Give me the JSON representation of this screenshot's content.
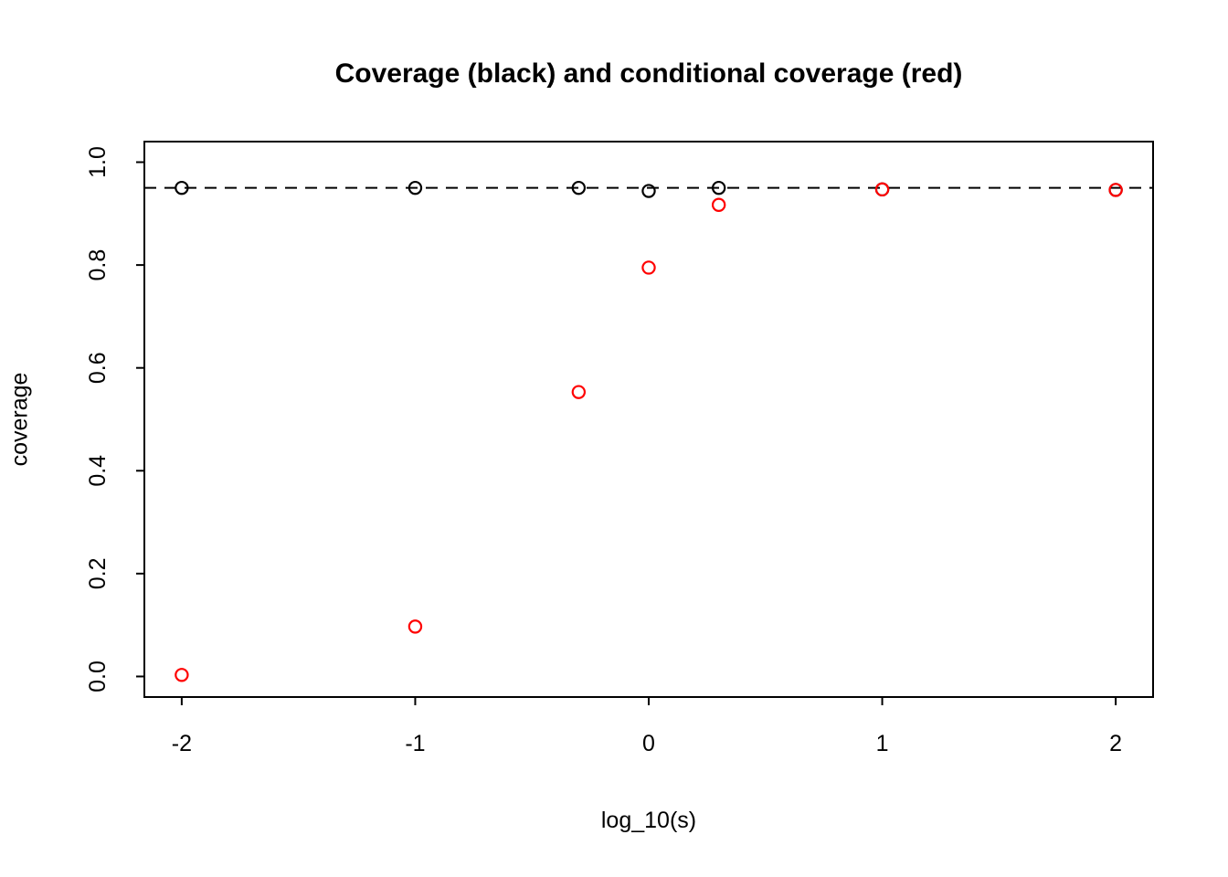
{
  "figure": {
    "background": "#FFFFFF"
  },
  "chart_data": {
    "type": "scatter",
    "title": "Coverage (black) and conditional coverage (red)",
    "xlabel": "log_10(s)",
    "ylabel": "coverage",
    "xlim": [
      -2.16,
      2.16
    ],
    "ylim": [
      -0.04,
      1.04
    ],
    "x_ticks": [
      -2,
      -1,
      0,
      1,
      2
    ],
    "x_tick_labels": [
      "-2",
      "-1",
      "0",
      "1",
      "2"
    ],
    "y_ticks": [
      0,
      0.2,
      0.4,
      0.6,
      0.8,
      1
    ],
    "y_tick_labels": [
      "0.0",
      "0.2",
      "0.4",
      "0.6",
      "0.8",
      "1.0"
    ],
    "grid": false,
    "legend": "none (series identified by color in title)",
    "reference_line": {
      "y": 0.95,
      "style": "dashed",
      "color": "#000000"
    },
    "x": [
      -2,
      -1,
      -0.3,
      0,
      0.3,
      1,
      2
    ],
    "series": [
      {
        "name": "coverage (black)",
        "color": "#000000",
        "values": [
          0.95,
          0.95,
          0.95,
          0.944,
          0.95,
          0.947,
          0.946
        ]
      },
      {
        "name": "conditional coverage (red)",
        "color": "#FF0000",
        "values": [
          0.003,
          0.097,
          0.553,
          0.795,
          0.917,
          0.947,
          0.946
        ]
      }
    ],
    "marker": {
      "shape": "open-circle",
      "radius_px": 6.6,
      "stroke_px": 2.2
    },
    "axis_color": "#000000"
  }
}
